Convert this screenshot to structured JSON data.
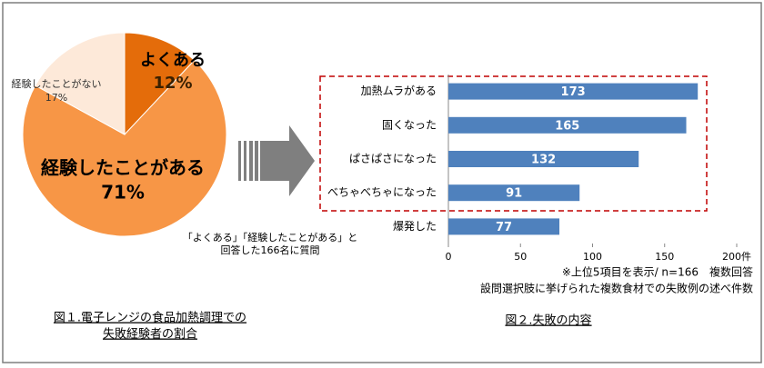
{
  "chart_data": [
    {
      "type": "pie",
      "categories": [
        "よくある",
        "経験したことがある",
        "経験したことがない"
      ],
      "values": [
        12,
        71,
        17
      ],
      "value_labels": [
        "12%",
        "71%",
        "17%"
      ],
      "colors": [
        "#e46c0a",
        "#f79646",
        "#fde9d9"
      ],
      "annotations": [
        "「よくある」「経験したことがある」と",
        "回答した166名に質問"
      ],
      "caption": [
        "図１.電子レンジの食品加熱調理での",
        "失敗経験者の割合"
      ]
    },
    {
      "type": "hbar",
      "categories": [
        "加熱ムラがある",
        "固くなった",
        "ぱさぱさになった",
        "べちゃべちゃになった",
        "爆発した"
      ],
      "values": [
        173,
        165,
        132,
        91,
        77
      ],
      "color": "#4f81bd",
      "xlim": [
        0,
        200
      ],
      "xticks": [
        0,
        50,
        100,
        150,
        {
          "value": 200,
          "label": "200件"
        }
      ],
      "notes": [
        "※上位5項目を表示/ n=166　複数回答",
        "設問選択肢に挙げられた複数食材での失敗例の述べ件数"
      ],
      "caption": "図２.失敗の内容"
    }
  ]
}
